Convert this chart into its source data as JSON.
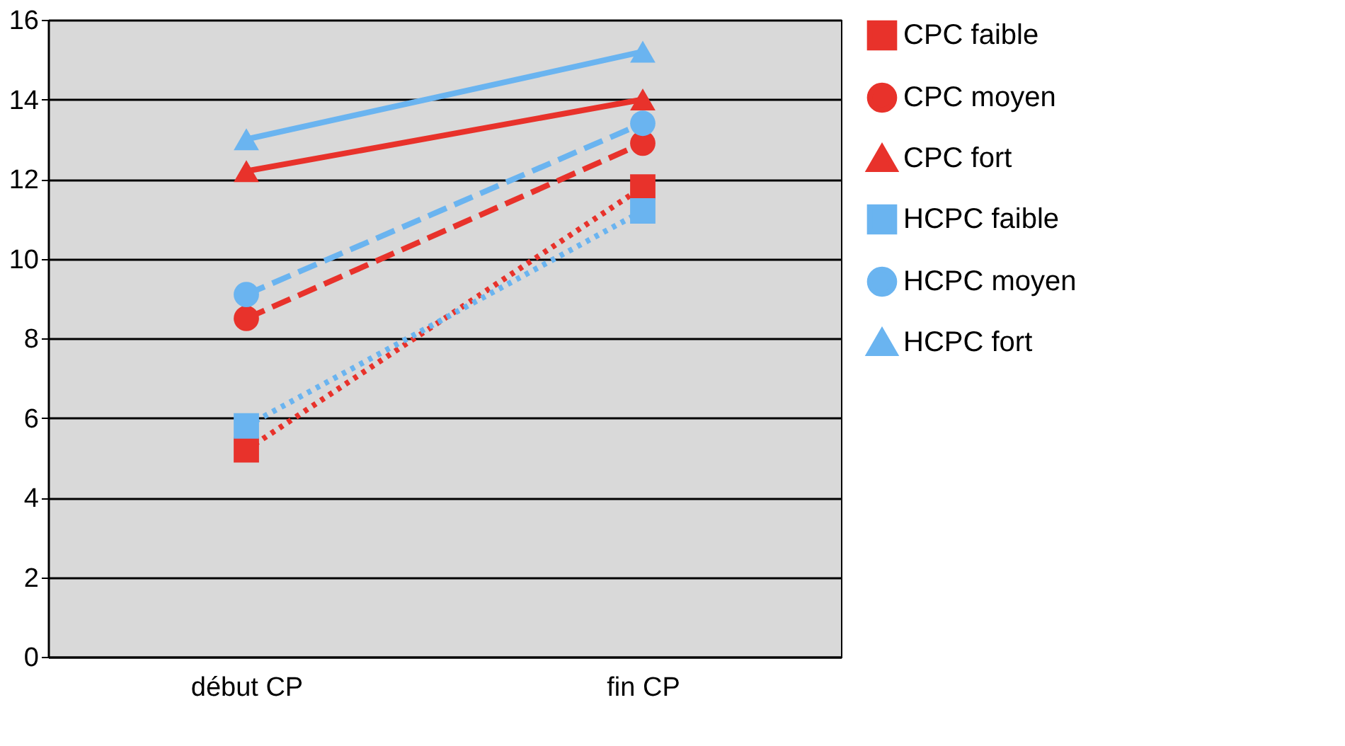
{
  "chart_data": {
    "type": "line",
    "categories": [
      "début CP",
      "fin CP"
    ],
    "series": [
      {
        "name": "CPC faible",
        "color": "#e8322b",
        "values": [
          5.2,
          11.8
        ],
        "marker": "square",
        "line_style": "dotted"
      },
      {
        "name": "CPC moyen",
        "color": "#e8322b",
        "values": [
          8.5,
          12.9
        ],
        "marker": "circle",
        "line_style": "dashed"
      },
      {
        "name": "CPC fort",
        "color": "#e8322b",
        "values": [
          12.2,
          14.0
        ],
        "marker": "triangle",
        "line_style": "solid"
      },
      {
        "name": "HCPC faible",
        "color": "#6ab4f0",
        "values": [
          5.8,
          11.2
        ],
        "marker": "square",
        "line_style": "dotted"
      },
      {
        "name": "HCPC moyen",
        "color": "#6ab4f0",
        "values": [
          9.1,
          13.4
        ],
        "marker": "circle",
        "line_style": "dashed"
      },
      {
        "name": "HCPC fort",
        "color": "#6ab4f0",
        "values": [
          13.0,
          15.2
        ],
        "marker": "triangle",
        "line_style": "solid"
      }
    ],
    "ylim": [
      0,
      16
    ],
    "yticks": [
      0,
      2,
      4,
      6,
      8,
      10,
      12,
      14,
      16
    ],
    "grid": "y",
    "legend": "right"
  }
}
